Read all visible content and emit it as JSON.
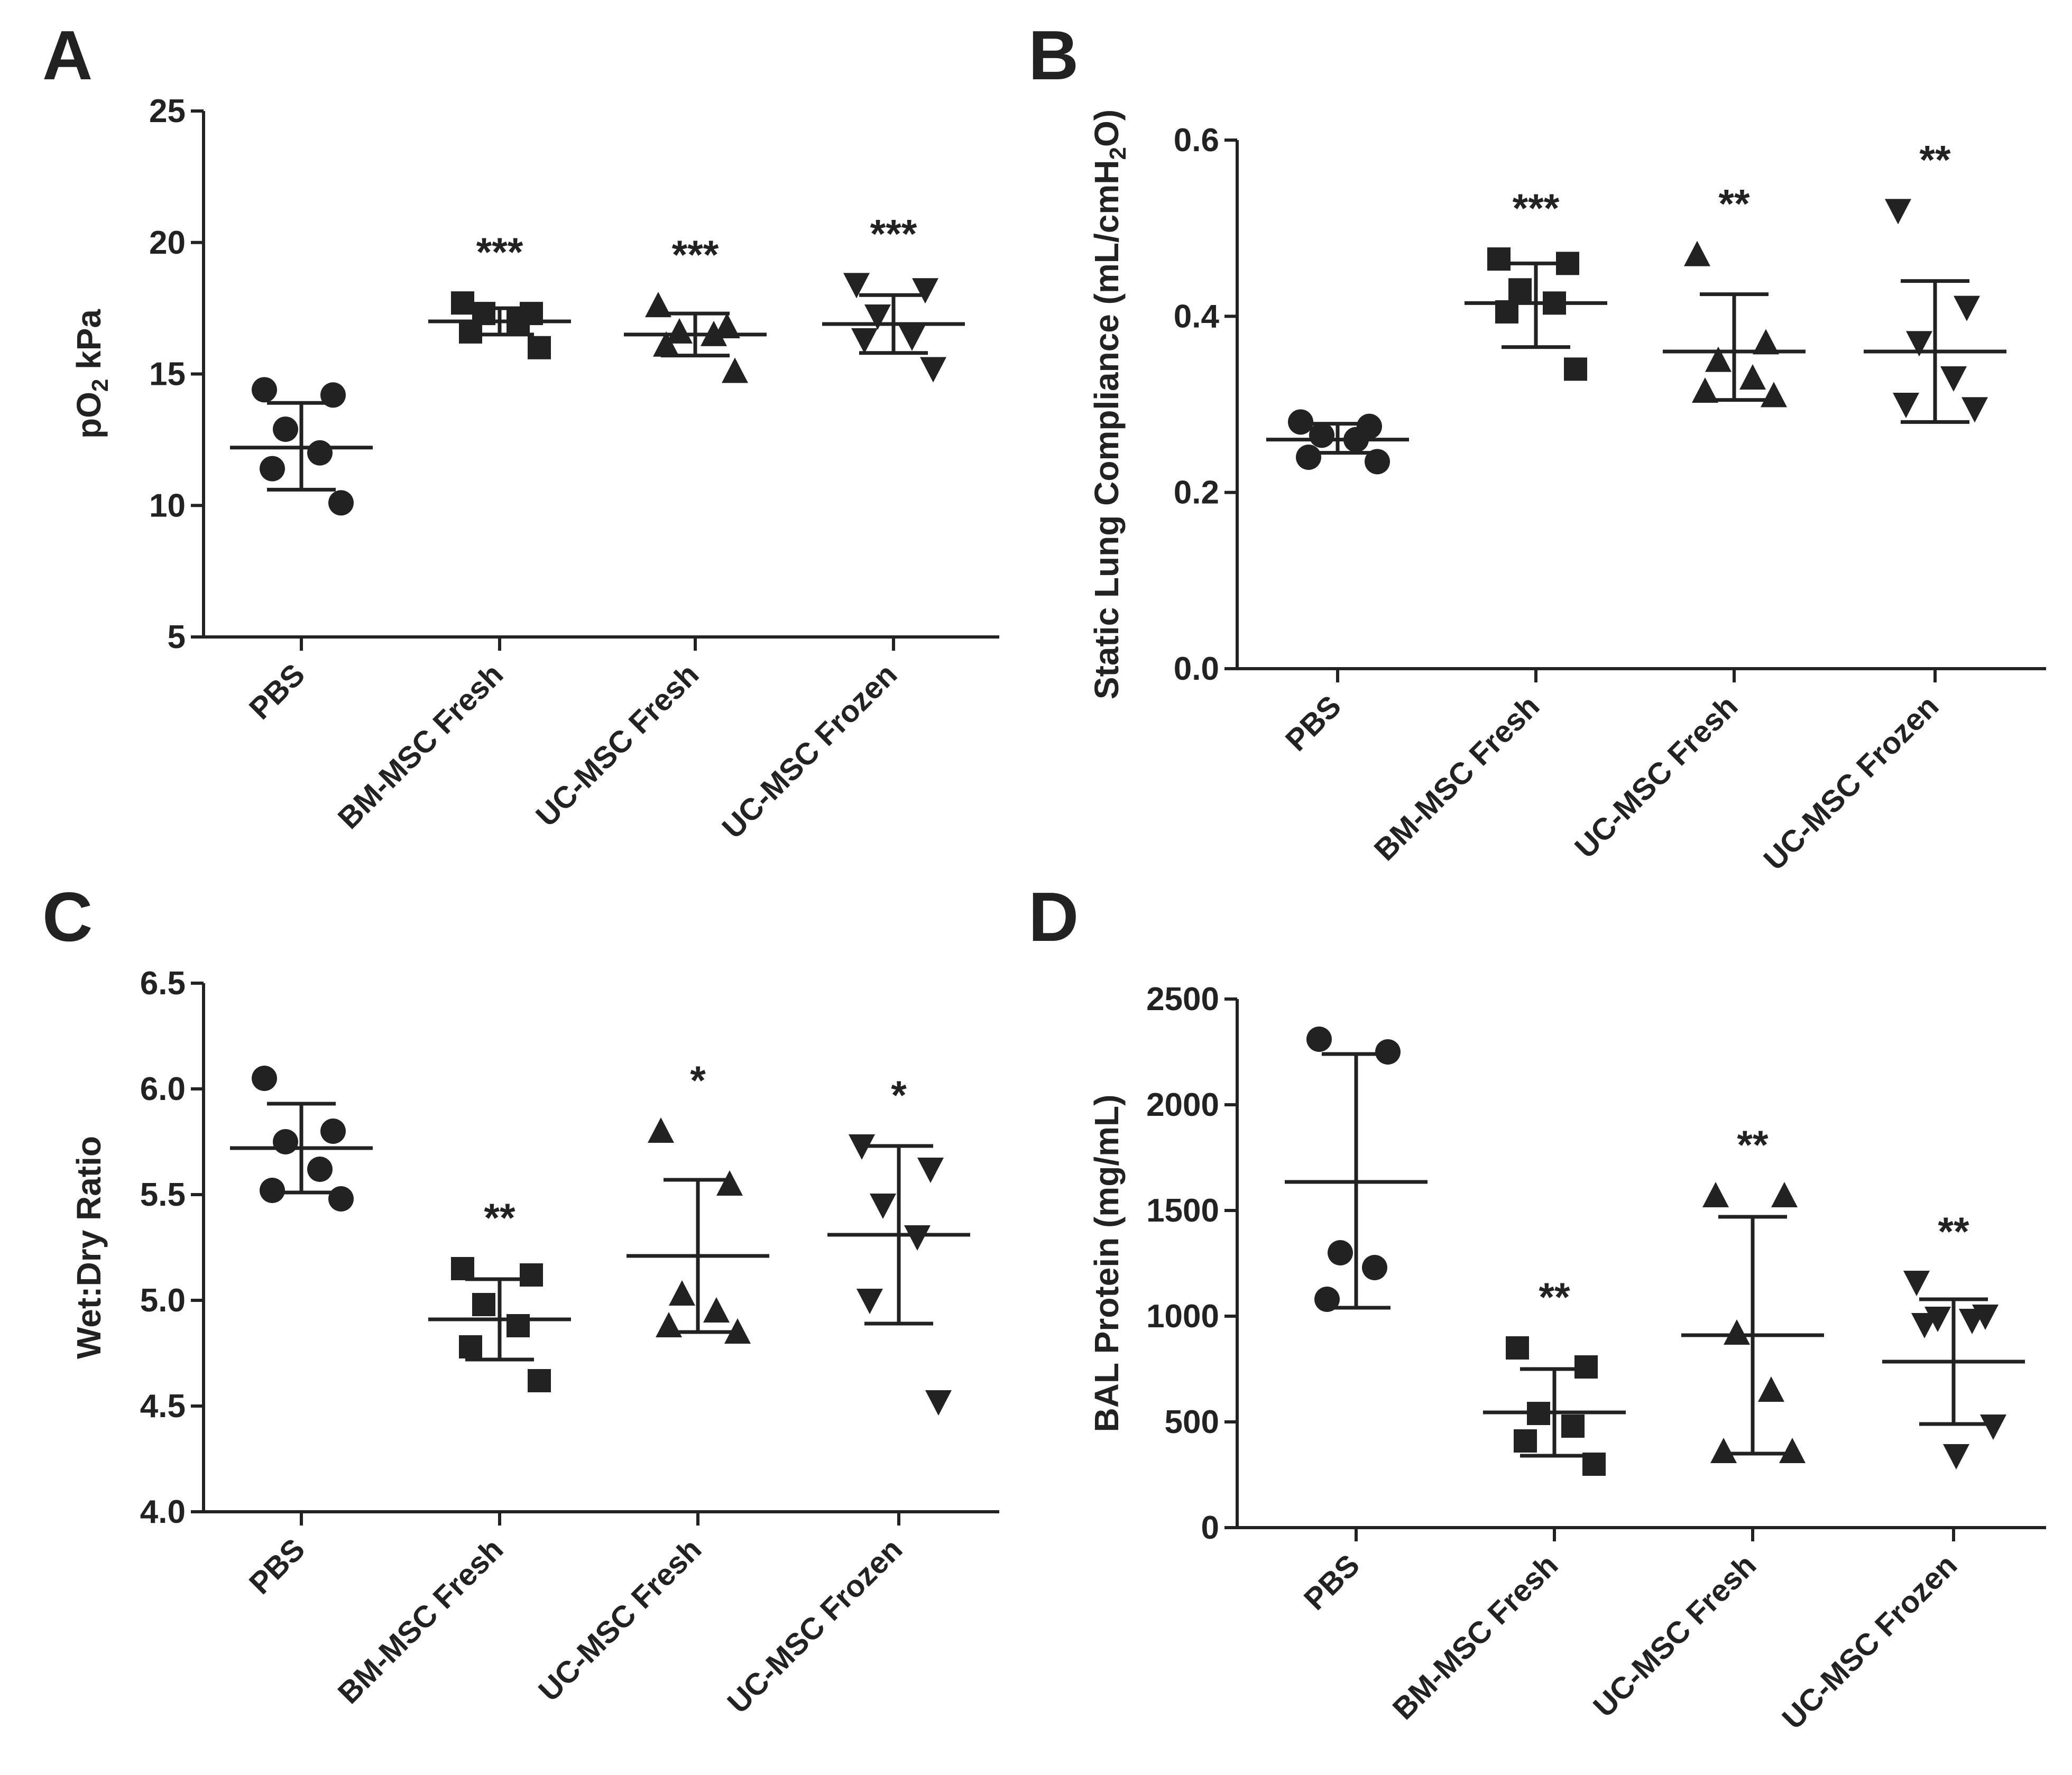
{
  "colors": {
    "ink": "#222222",
    "background": "#ffffff"
  },
  "categories": [
    "PBS",
    "BM-MSC Fresh",
    "UC-MSC Fresh",
    "UC-MSC Frozen"
  ],
  "marker_shapes": [
    "circle",
    "square",
    "triangle-up",
    "triangle-down"
  ],
  "chart_data": [
    {
      "panel": "A",
      "type": "scatter",
      "ylabel": "pO",
      "ylabel_sub": "2",
      "ylabel_after": " kPa",
      "ylim": [
        5,
        25
      ],
      "yticks": [
        "5",
        "10",
        "15",
        "20",
        "25"
      ],
      "groups": [
        {
          "category": "PBS",
          "points": [
            14.4,
            14.2,
            12.9,
            12.0,
            11.4,
            10.1
          ],
          "mean": 12.2,
          "sd_low": 10.6,
          "sd_high": 13.9,
          "sig": ""
        },
        {
          "category": "BM-MSC Fresh",
          "points": [
            17.7,
            17.3,
            17.3,
            17.0,
            16.6,
            16.0
          ],
          "mean": 17.0,
          "sd_low": 16.5,
          "sd_high": 17.5,
          "sig": "***"
        },
        {
          "category": "UC-MSC Fresh",
          "points": [
            17.6,
            16.8,
            16.6,
            16.5,
            16.1,
            15.1
          ],
          "mean": 16.5,
          "sd_low": 15.7,
          "sd_high": 17.3,
          "sig": "***"
        },
        {
          "category": "UC-MSC Frozen",
          "points": [
            18.4,
            18.2,
            17.2,
            16.4,
            16.3,
            15.2
          ],
          "mean": 16.9,
          "sd_low": 15.8,
          "sd_high": 18.0,
          "sig": "***"
        }
      ]
    },
    {
      "panel": "B",
      "type": "scatter",
      "ylabel": "Static Lung Compliance (mL/cmH",
      "ylabel_sub": "2",
      "ylabel_after": "O)",
      "ylim": [
        0.0,
        0.6
      ],
      "yticks": [
        "0.0",
        "0.2",
        "0.4",
        "0.6"
      ],
      "groups": [
        {
          "category": "PBS",
          "points": [
            0.28,
            0.275,
            0.265,
            0.26,
            0.24,
            0.235
          ],
          "mean": 0.26,
          "sd_low": 0.245,
          "sd_high": 0.278,
          "sig": ""
        },
        {
          "category": "BM-MSC Fresh",
          "points": [
            0.465,
            0.46,
            0.43,
            0.415,
            0.405,
            0.34
          ],
          "mean": 0.415,
          "sd_low": 0.365,
          "sd_high": 0.46,
          "sig": "***"
        },
        {
          "category": "UC-MSC Fresh",
          "points": [
            0.47,
            0.37,
            0.35,
            0.33,
            0.315,
            0.31
          ],
          "mean": 0.36,
          "sd_low": 0.305,
          "sd_high": 0.425,
          "sig": "**"
        },
        {
          "category": "UC-MSC Frozen",
          "points": [
            0.52,
            0.41,
            0.37,
            0.33,
            0.3,
            0.295
          ],
          "mean": 0.36,
          "sd_low": 0.28,
          "sd_high": 0.44,
          "sig": "**"
        }
      ]
    },
    {
      "panel": "C",
      "type": "scatter",
      "ylabel": "Wet:Dry Ratio",
      "ylabel_sub": "",
      "ylabel_after": "",
      "ylim": [
        4.0,
        6.5
      ],
      "yticks": [
        "4.0",
        "4.5",
        "5.0",
        "5.5",
        "6.0",
        "6.5"
      ],
      "groups": [
        {
          "category": "PBS",
          "points": [
            6.05,
            5.8,
            5.75,
            5.62,
            5.52,
            5.48
          ],
          "mean": 5.72,
          "sd_low": 5.51,
          "sd_high": 5.93,
          "sig": ""
        },
        {
          "category": "BM-MSC Fresh",
          "points": [
            5.15,
            5.12,
            4.98,
            4.88,
            4.78,
            4.62
          ],
          "mean": 4.91,
          "sd_low": 4.72,
          "sd_high": 5.1,
          "sig": "**"
        },
        {
          "category": "UC-MSC Fresh",
          "points": [
            5.8,
            5.55,
            5.03,
            4.95,
            4.88,
            4.85
          ],
          "mean": 5.21,
          "sd_low": 4.85,
          "sd_high": 5.57,
          "sig": "*"
        },
        {
          "category": "UC-MSC Frozen",
          "points": [
            5.73,
            5.62,
            5.45,
            5.3,
            5.0,
            4.52
          ],
          "mean": 5.31,
          "sd_low": 4.89,
          "sd_high": 5.73,
          "sig": "*"
        }
      ]
    },
    {
      "panel": "D",
      "type": "scatter",
      "ylabel": "BAL Protein (mg/mL)",
      "ylabel_sub": "",
      "ylabel_after": "",
      "ylim": [
        0,
        2500
      ],
      "yticks": [
        "0",
        "500",
        "1000",
        "1500",
        "2000",
        "2500"
      ],
      "groups": [
        {
          "category": "PBS",
          "points": [
            2310,
            2250,
            1300,
            1230,
            1080
          ],
          "mean": 1635,
          "sd_low": 1040,
          "sd_high": 2240,
          "sig": ""
        },
        {
          "category": "BM-MSC Fresh",
          "points": [
            850,
            760,
            540,
            480,
            410,
            300
          ],
          "mean": 545,
          "sd_low": 340,
          "sd_high": 750,
          "sig": "**"
        },
        {
          "category": "UC-MSC Fresh",
          "points": [
            1570,
            1570,
            920,
            650,
            360,
            360
          ],
          "mean": 910,
          "sd_low": 350,
          "sd_high": 1470,
          "sig": "**"
        },
        {
          "category": "UC-MSC Frozen",
          "points": [
            1160,
            1000,
            990,
            980,
            960,
            480,
            340
          ],
          "mean": 785,
          "sd_low": 490,
          "sd_high": 1080,
          "sig": "**"
        }
      ]
    }
  ]
}
